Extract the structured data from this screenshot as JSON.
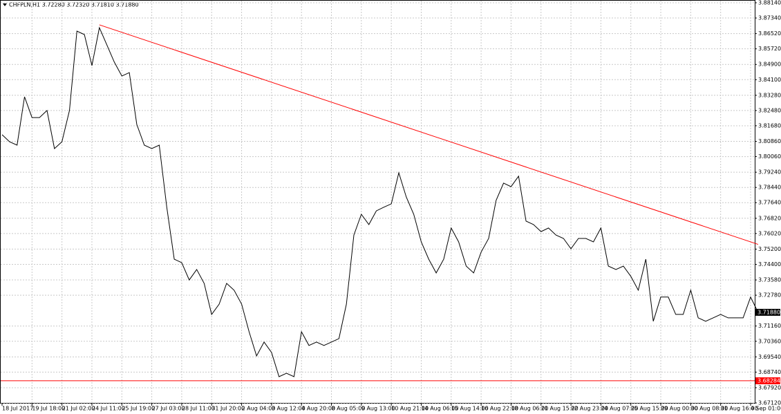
{
  "chart_data": {
    "type": "line",
    "title": "CHFPLN,H1  3.72280 3.72320 3.71810 3.71880",
    "categories": [
      "18 Jul 2017",
      null,
      null,
      null,
      "19 Jul 18:00",
      null,
      null,
      null,
      "21 Jul 02:00",
      null,
      null,
      null,
      "24 Jul 11:00",
      null,
      null,
      null,
      "25 Jul 19:00",
      null,
      null,
      null,
      "27 Jul 03:00",
      null,
      null,
      null,
      "28 Jul 11:00",
      null,
      null,
      null,
      "31 Jul 20:00",
      null,
      null,
      null,
      "2 Aug 04:00",
      null,
      null,
      null,
      "3 Aug 12:00",
      null,
      null,
      null,
      "4 Aug 20:00",
      null,
      null,
      null,
      "8 Aug 05:00",
      null,
      null,
      null,
      "9 Aug 13:00",
      null,
      null,
      null,
      "10 Aug 21:00",
      null,
      null,
      null,
      "14 Aug 06:00",
      null,
      null,
      null,
      "15 Aug 14:00",
      null,
      null,
      null,
      "16 Aug 22:00",
      null,
      null,
      null,
      "18 Aug 06:00",
      null,
      null,
      null,
      "21 Aug 15:00",
      null,
      null,
      null,
      "22 Aug 23:00",
      null,
      null,
      null,
      "24 Aug 07:00",
      null,
      null,
      null,
      "25 Aug 15:00",
      null,
      null,
      null,
      "29 Aug 00:00",
      null,
      null,
      null,
      "30 Aug 08:00",
      null,
      null,
      null,
      "31 Aug 16:00",
      null,
      null,
      null,
      "4 Sep 01:00",
      null
    ],
    "series": [
      {
        "name": "CHFPLN,H1",
        "color": "#000000",
        "values": [
          3.8121,
          3.8084,
          3.8066,
          3.832,
          3.8211,
          3.8211,
          3.8248,
          3.8048,
          3.8084,
          3.8248,
          3.8665,
          3.8647,
          3.8484,
          3.8683,
          3.8593,
          3.8502,
          3.8429,
          3.8447,
          3.8175,
          3.8066,
          3.8048,
          3.8066,
          3.774,
          3.7467,
          3.7449,
          3.7358,
          3.7413,
          3.734,
          3.7177,
          3.7231,
          3.734,
          3.7304,
          3.7231,
          3.7086,
          3.6959,
          3.7032,
          3.6977,
          3.685,
          3.6868,
          3.685,
          3.7086,
          3.7014,
          3.7032,
          3.7014,
          3.7032,
          3.705,
          3.7231,
          3.7594,
          3.7703,
          3.7649,
          3.7721,
          3.774,
          3.7758,
          3.7921,
          3.7794,
          3.7703,
          3.7558,
          3.7467,
          3.7395,
          3.7467,
          3.7631,
          3.7558,
          3.7431,
          3.7395,
          3.7504,
          3.7576,
          3.7776,
          3.7867,
          3.7848,
          3.7903,
          3.7667,
          3.7649,
          3.7612,
          3.7631,
          3.7594,
          3.7576,
          3.7522,
          3.7576,
          3.7576,
          3.7558,
          3.7631,
          3.7431,
          3.7413,
          3.7431,
          3.7377,
          3.7304,
          3.7467,
          3.7141,
          3.7268,
          3.7268,
          3.7177,
          3.7177,
          3.7304,
          3.7159,
          3.7141,
          3.7159,
          3.7177,
          3.7159,
          3.7159,
          3.7159,
          3.7268,
          3.7188
        ]
      }
    ],
    "ylim": [
      3.6712,
      3.8814
    ],
    "yticks": [
      {
        "value": 3.8814,
        "label": "3.88140"
      },
      {
        "value": 3.8734,
        "label": "3.87340"
      },
      {
        "value": 3.8652,
        "label": "3.86520"
      },
      {
        "value": 3.8572,
        "label": "3.85720"
      },
      {
        "value": 3.849,
        "label": "3.84900"
      },
      {
        "value": 3.841,
        "label": "3.84100"
      },
      {
        "value": 3.8328,
        "label": "3.83280"
      },
      {
        "value": 3.8248,
        "label": "3.82480"
      },
      {
        "value": 3.8168,
        "label": "3.81680"
      },
      {
        "value": 3.8086,
        "label": "3.80860"
      },
      {
        "value": 3.8006,
        "label": "3.80060"
      },
      {
        "value": 3.7924,
        "label": "3.79240"
      },
      {
        "value": 3.7844,
        "label": "3.78440"
      },
      {
        "value": 3.7764,
        "label": "3.77640"
      },
      {
        "value": 3.7682,
        "label": "3.76820"
      },
      {
        "value": 3.7602,
        "label": "3.76020"
      },
      {
        "value": 3.752,
        "label": "3.75200"
      },
      {
        "value": 3.744,
        "label": "3.74400"
      },
      {
        "value": 3.7358,
        "label": "3.73580"
      },
      {
        "value": 3.7278,
        "label": "3.72780"
      },
      {
        "value": 3.7116,
        "label": "3.71160"
      },
      {
        "value": 3.7036,
        "label": "3.70360"
      },
      {
        "value": 3.6954,
        "label": "3.69540"
      },
      {
        "value": 3.6874,
        "label": "3.68740"
      },
      {
        "value": 3.6792,
        "label": "3.67920"
      },
      {
        "value": 3.6712,
        "label": "3.67120"
      }
    ],
    "grid": true,
    "trendline": {
      "x": [
        13,
        101
      ],
      "values": [
        3.8698,
        3.7545
      ],
      "color": "#ff0000"
    },
    "hline": {
      "value": 3.68284,
      "label": "3.68284",
      "color": "#ff0000"
    },
    "last_price": {
      "value": 3.7188,
      "label": "3.71880",
      "color": "#000000"
    }
  }
}
